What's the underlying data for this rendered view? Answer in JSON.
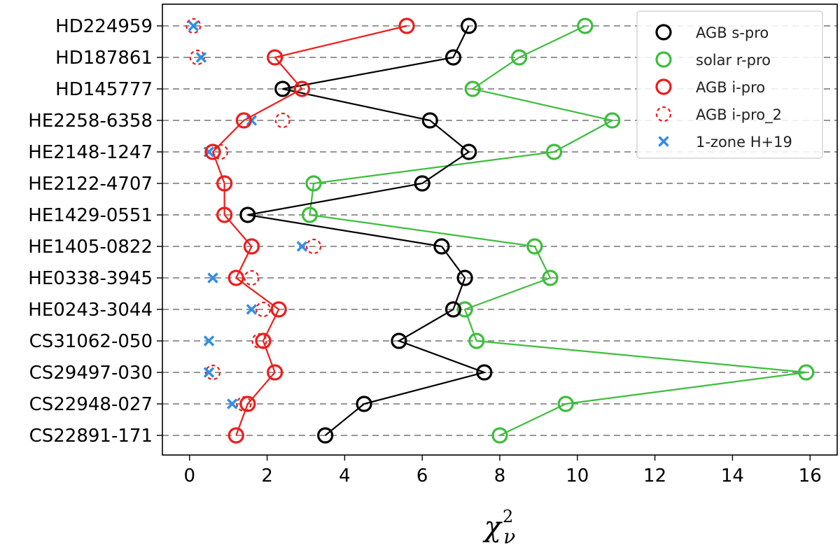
{
  "chart_data": {
    "type": "line",
    "orientation": "horizontal",
    "xlabel": "χ",
    "xlabel_superscript": "2",
    "xlabel_subscript": "ν",
    "ylabel": "",
    "xlim": [
      -0.7,
      16.7
    ],
    "xticks": [
      0,
      2,
      4,
      6,
      8,
      10,
      12,
      14,
      16
    ],
    "grid": "horizontal-dashed",
    "legend_position": "top-right",
    "categories": [
      "HD224959",
      "HD187861",
      "HD145777",
      "HE2258-6358",
      "HE2148-1247",
      "HE2122-4707",
      "HE1429-0551",
      "HE1405-0822",
      "HE0338-3945",
      "HE0243-3044",
      "CS31062-050",
      "CS29497-030",
      "CS22948-027",
      "CS22891-171"
    ],
    "series": [
      {
        "name": "AGB s-pro",
        "color": "#000000",
        "marker": "circle",
        "line": true,
        "values": [
          7.2,
          6.8,
          2.4,
          6.2,
          7.2,
          6.0,
          1.5,
          6.5,
          7.1,
          6.8,
          5.4,
          7.6,
          4.5,
          3.5
        ]
      },
      {
        "name": "solar r-pro",
        "color": "#3cbe3c",
        "marker": "circle",
        "line": true,
        "values": [
          10.2,
          8.5,
          7.3,
          10.9,
          9.4,
          3.2,
          3.1,
          8.9,
          9.3,
          7.1,
          7.4,
          15.9,
          9.7,
          8.0
        ]
      },
      {
        "name": "AGB i-pro",
        "color": "#ee1c1c",
        "marker": "circle",
        "line": true,
        "values": [
          5.6,
          2.2,
          2.9,
          1.4,
          0.6,
          0.9,
          0.9,
          1.6,
          1.2,
          2.3,
          1.9,
          2.2,
          1.5,
          1.2
        ]
      },
      {
        "name": "AGB i-pro_2",
        "color": "#ee1c1c",
        "marker": "dashed-circle",
        "line": false,
        "values": [
          0.1,
          0.2,
          2.9,
          2.4,
          0.8,
          0.9,
          0.9,
          3.2,
          1.6,
          1.9,
          1.8,
          0.6,
          1.4,
          1.2
        ]
      },
      {
        "name": "1-zone H+19",
        "color": "#2f8fe6",
        "marker": "x",
        "line": false,
        "values": [
          0.1,
          0.3,
          null,
          1.6,
          0.5,
          null,
          null,
          2.9,
          0.6,
          1.6,
          0.5,
          0.5,
          1.1,
          null
        ]
      }
    ]
  }
}
